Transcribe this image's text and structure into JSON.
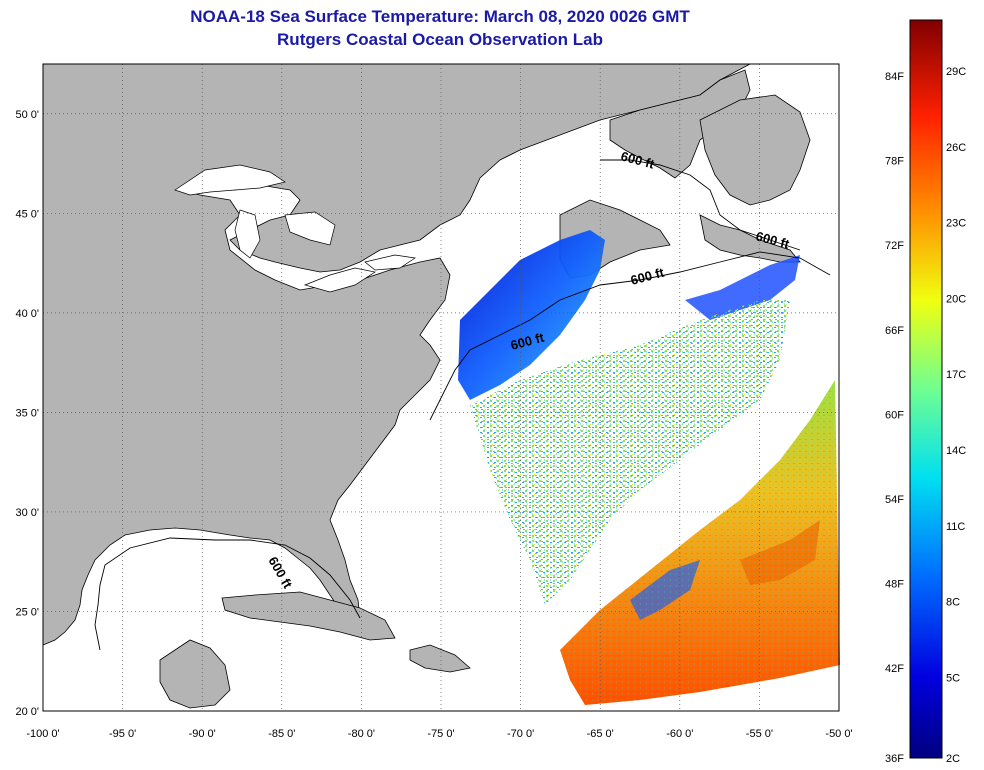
{
  "header": {
    "title": "NOAA-18 Sea Surface Temperature:  March 08, 2020 0026 GMT",
    "subtitle": "Rutgers Coastal Ocean Observation Lab"
  },
  "map": {
    "lon_range": [
      -100,
      -50
    ],
    "lat_range": [
      20,
      52.5
    ],
    "lon_ticks": [
      "-100 0'",
      "-95 0'",
      "-90 0'",
      "-85 0'",
      "-80 0'",
      "-75 0'",
      "-70 0'",
      "-65 0'",
      "-60 0'",
      "-55 0'",
      "-50 0'"
    ],
    "lat_ticks": [
      "20 0'",
      "25 0'",
      "30 0'",
      "35 0'",
      "40 0'",
      "45 0'",
      "50 0'"
    ],
    "land_color": "#b4b4b4",
    "contour_labels": [
      "600 ft",
      "600 ft",
      "600 ft",
      "600 ft",
      "600 ft"
    ]
  },
  "colorbar": {
    "fahrenheit": [
      "84F",
      "78F",
      "72F",
      "66F",
      "60F",
      "54F",
      "48F",
      "42F",
      "36F"
    ],
    "celsius": [
      "29C",
      "26C",
      "23C",
      "20C",
      "17C",
      "14C",
      "11C",
      "8C",
      "5C",
      "2C"
    ]
  }
}
